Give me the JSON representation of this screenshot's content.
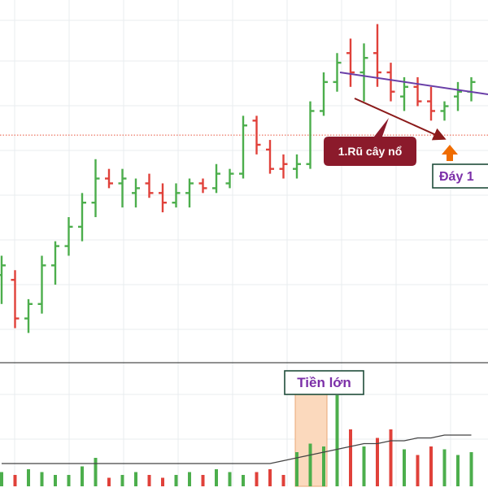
{
  "colors": {
    "up": "#4cae4c",
    "down": "#e0413a",
    "grid": "#e9ecef",
    "panel_divider": "#4d4d4d",
    "ref_line": "#e8553c",
    "trendline": "#6a3fa8",
    "arrow": "#8b1a1a",
    "callout_fill": "#8b1a2b",
    "callout_text": "#ffffff",
    "bottom_marker": "#ef6c00",
    "label_border": "#1f4d3a",
    "label_text_purple": "#7b2fa8",
    "ma_line": "#444444",
    "highlight_fill": "#fbd9bd"
  },
  "annotations": {
    "callout": "1.Rũ cây nổ",
    "bottom_label": "Đáy 1",
    "volume_label": "Tiền lớn"
  },
  "chart_data": {
    "type": "ohlc-bar-with-volume",
    "title": "",
    "xlabel": "",
    "ylabel": "",
    "price_ylim": [
      0,
      100
    ],
    "volume_ylim": [
      0,
      100
    ],
    "reference_price": 67,
    "grid": true,
    "bars": [
      {
        "o": 38,
        "h": 42,
        "l": 32,
        "c": 40,
        "v": 5,
        "up": true
      },
      {
        "o": 37,
        "h": 39,
        "l": 27,
        "c": 29,
        "v": 4,
        "up": false
      },
      {
        "o": 29,
        "h": 33,
        "l": 26,
        "c": 32,
        "v": 6,
        "up": true
      },
      {
        "o": 32,
        "h": 42,
        "l": 30,
        "c": 40,
        "v": 5,
        "up": true
      },
      {
        "o": 40,
        "h": 45,
        "l": 36,
        "c": 44,
        "v": 4,
        "up": true
      },
      {
        "o": 44,
        "h": 50,
        "l": 42,
        "c": 48,
        "v": 4,
        "up": true
      },
      {
        "o": 48,
        "h": 55,
        "l": 45,
        "c": 53,
        "v": 7,
        "up": true
      },
      {
        "o": 53,
        "h": 62,
        "l": 50,
        "c": 58,
        "v": 10,
        "up": true
      },
      {
        "o": 58,
        "h": 60,
        "l": 56,
        "c": 57,
        "v": 3,
        "up": false
      },
      {
        "o": 57,
        "h": 60,
        "l": 52,
        "c": 58,
        "v": 4,
        "up": true
      },
      {
        "o": 55,
        "h": 58,
        "l": 52,
        "c": 56,
        "v": 5,
        "up": true
      },
      {
        "o": 57,
        "h": 59,
        "l": 54,
        "c": 55,
        "v": 4,
        "up": false
      },
      {
        "o": 55,
        "h": 57,
        "l": 51,
        "c": 53,
        "v": 3,
        "up": false
      },
      {
        "o": 53,
        "h": 57,
        "l": 52,
        "c": 55,
        "v": 4,
        "up": true
      },
      {
        "o": 55,
        "h": 58,
        "l": 52,
        "c": 57,
        "v": 5,
        "up": true
      },
      {
        "o": 57,
        "h": 58,
        "l": 55,
        "c": 56,
        "v": 4,
        "up": false
      },
      {
        "o": 56,
        "h": 61,
        "l": 55,
        "c": 59,
        "v": 6,
        "up": true
      },
      {
        "o": 57,
        "h": 60,
        "l": 56,
        "c": 59,
        "v": 5,
        "up": true
      },
      {
        "o": 59,
        "h": 71,
        "l": 58,
        "c": 69,
        "v": 4,
        "up": true
      },
      {
        "o": 70,
        "h": 71,
        "l": 63,
        "c": 65,
        "v": 5,
        "up": false
      },
      {
        "o": 64,
        "h": 66,
        "l": 59,
        "c": 60,
        "v": 6,
        "up": false
      },
      {
        "o": 60,
        "h": 63,
        "l": 58,
        "c": 61,
        "v": 4,
        "up": false
      },
      {
        "o": 60,
        "h": 63,
        "l": 58,
        "c": 61,
        "v": 12,
        "up": true
      },
      {
        "o": 61,
        "h": 74,
        "l": 60,
        "c": 72,
        "v": 15,
        "up": true
      },
      {
        "o": 72,
        "h": 80,
        "l": 71,
        "c": 78,
        "v": 14,
        "up": true
      },
      {
        "o": 78,
        "h": 84,
        "l": 76,
        "c": 82,
        "v": 32,
        "up": true
      },
      {
        "o": 84,
        "h": 87,
        "l": 77,
        "c": 80,
        "v": 20,
        "up": false
      },
      {
        "o": 80,
        "h": 86,
        "l": 74,
        "c": 83,
        "v": 14,
        "up": true
      },
      {
        "o": 84,
        "h": 90,
        "l": 77,
        "c": 80,
        "v": 17,
        "up": false
      },
      {
        "o": 80,
        "h": 82,
        "l": 74,
        "c": 76,
        "v": 20,
        "up": false
      },
      {
        "o": 75,
        "h": 79,
        "l": 72,
        "c": 77,
        "v": 13,
        "up": true
      },
      {
        "o": 77,
        "h": 79,
        "l": 73,
        "c": 74,
        "v": 11,
        "up": false
      },
      {
        "o": 74,
        "h": 77,
        "l": 70,
        "c": 72,
        "v": 14,
        "up": false
      },
      {
        "o": 72,
        "h": 74,
        "l": 70,
        "c": 73,
        "v": 13,
        "up": true
      },
      {
        "o": 75,
        "h": 78,
        "l": 72,
        "c": 76,
        "v": 11,
        "up": true
      },
      {
        "o": 76,
        "h": 79,
        "l": 74,
        "c": 78,
        "v": 12,
        "up": true
      }
    ],
    "volume_ma": [
      8,
      8,
      8,
      8,
      8,
      8,
      8,
      8,
      8,
      8,
      8,
      8,
      8,
      8,
      8,
      8,
      8,
      8,
      8,
      8,
      8,
      9,
      10,
      11,
      12,
      13,
      14,
      15,
      15,
      16,
      16,
      17,
      17,
      18,
      18,
      18
    ]
  }
}
